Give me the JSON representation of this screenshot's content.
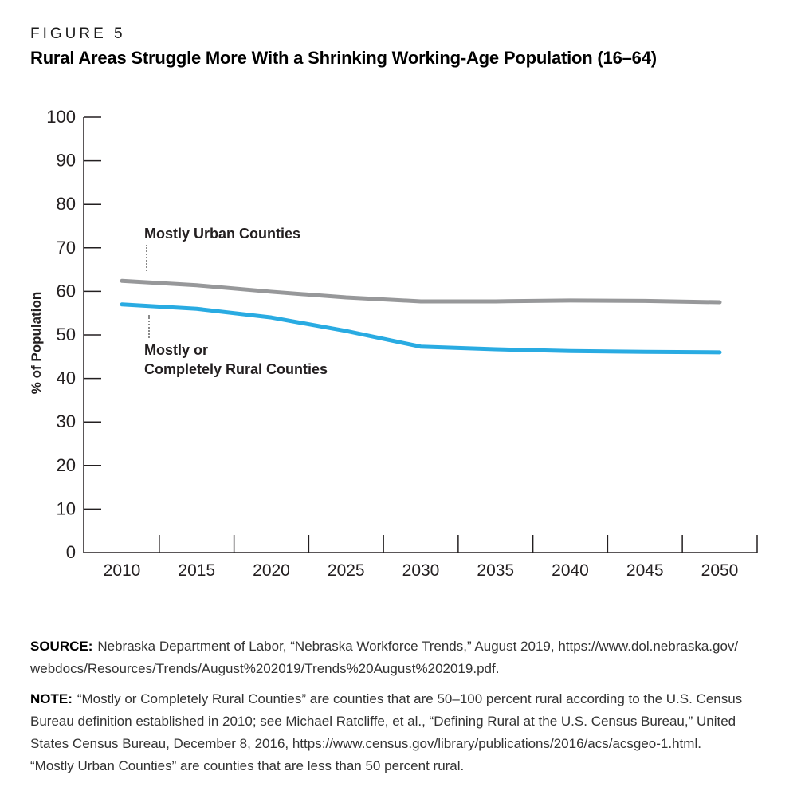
{
  "figure": {
    "label": "FIGURE 5",
    "title": "Rural Areas Struggle More With a Shrinking Working-Age Population (16–64)"
  },
  "chart_data": {
    "type": "line",
    "title": "Rural Areas Struggle More With a Shrinking Working-Age Population (16–64)",
    "xlabel": "",
    "ylabel": "% of Population",
    "x": [
      2010,
      2015,
      2020,
      2025,
      2030,
      2035,
      2040,
      2045,
      2050
    ],
    "series": [
      {
        "name": "Mostly Urban Counties",
        "color": "#97989A",
        "values": [
          62.4,
          61.4,
          59.9,
          58.6,
          57.7,
          57.7,
          57.9,
          57.8,
          57.5
        ]
      },
      {
        "name": "Mostly or Completely Rural Counties",
        "color": "#29ABE2",
        "values": [
          57.0,
          56.0,
          54.0,
          50.9,
          47.3,
          46.7,
          46.3,
          46.1,
          46.0
        ]
      }
    ],
    "ylim": [
      0,
      100
    ],
    "yticks": [
      0,
      10,
      20,
      30,
      40,
      50,
      60,
      70,
      80,
      90,
      100
    ],
    "grid": false,
    "legend_position": "inline-annotations",
    "annotations": {
      "urban": "Mostly Urban Counties",
      "rural": "Mostly or\nCompletely Rural Counties"
    },
    "axis_color": "#231F20"
  },
  "source": {
    "label": "SOURCE:",
    "text": "Nebraska Department of Labor, “Nebraska Workforce Trends,” August 2019, https://www.dol.nebraska.gov/\nwebdocs/Resources/Trends/August%202019/Trends%20August%202019.pdf."
  },
  "note": {
    "label": "NOTE:",
    "text": "“Mostly or Completely Rural Counties” are counties that are 50–100 percent rural according to the U.S. Census\nBureau definition established in 2010; see Michael Ratcliffe, et al., “Defining Rural at the U.S. Census Bureau,” United\nStates Census Bureau, December 8, 2016, https://www.census.gov/library/publications/2016/acs/acsgeo-1.html.\n“Mostly Urban Counties” are counties that are less than 50 percent rural."
  }
}
